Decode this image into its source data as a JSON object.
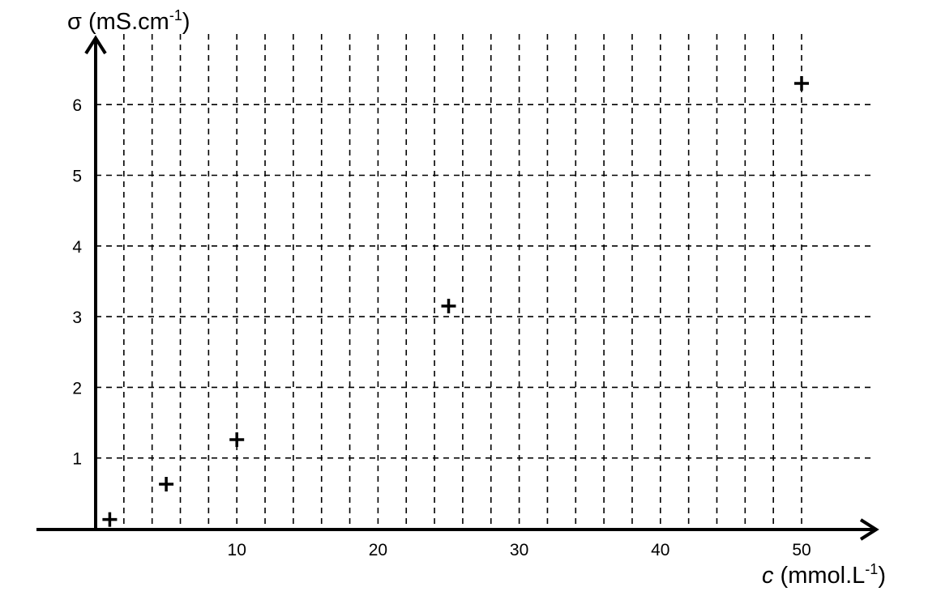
{
  "chart_data": {
    "type": "scatter",
    "title": "",
    "xlabel": {
      "symbol": "c",
      "unit": " (mmol.L",
      "exp": "-1",
      "close": ")"
    },
    "ylabel": {
      "symbol": "σ",
      "unit": " (mS.cm",
      "exp": "-1",
      "close": ")"
    },
    "xlim": [
      0,
      55
    ],
    "ylim": [
      0,
      6.5
    ],
    "x_ticks": [
      10,
      20,
      30,
      40,
      50
    ],
    "y_ticks": [
      1,
      2,
      3,
      4,
      5,
      6
    ],
    "x_grid_step": 2,
    "y_grid_step": 1,
    "grid": true,
    "grid_style": "dashed",
    "marker": "plus",
    "color": "#000000",
    "points": [
      {
        "x": 1,
        "y": 0.13
      },
      {
        "x": 5,
        "y": 0.63
      },
      {
        "x": 10,
        "y": 1.26
      },
      {
        "x": 25,
        "y": 3.15
      },
      {
        "x": 50,
        "y": 6.3
      }
    ]
  }
}
